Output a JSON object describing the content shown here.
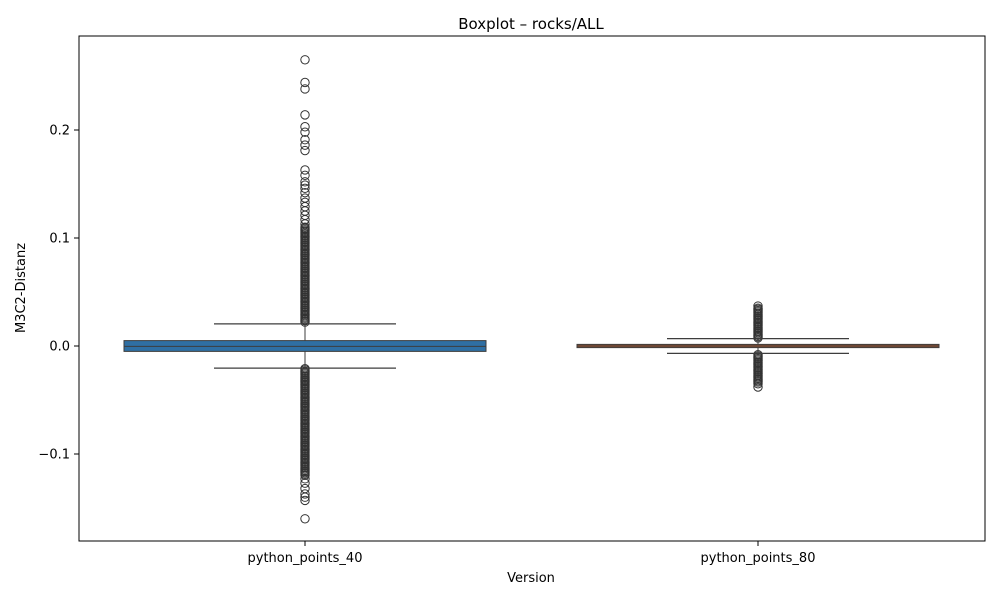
{
  "chart_data": {
    "type": "box",
    "title": "Boxplot – rocks/ALL",
    "xlabel": "Version",
    "ylabel": "M3C2-Distanz",
    "ylim": [
      -0.18,
      0.285
    ],
    "yticks": [
      -0.1,
      0.0,
      0.1,
      0.2
    ],
    "ytick_labels": [
      "−0.1",
      "0.0",
      "0.1",
      "0.2"
    ],
    "grid": false,
    "categories": [
      "python_points_40",
      "python_points_80"
    ],
    "boxes": [
      {
        "category": "python_points_40",
        "color": "#2f6fa3",
        "q1": -0.005,
        "median": -0.0003,
        "q3": 0.005,
        "whisker_low": -0.0205,
        "whisker_high": 0.0205,
        "outliers_high": [
          0.265,
          0.244,
          0.238,
          0.214,
          0.203,
          0.198,
          0.191,
          0.186,
          0.181,
          0.163,
          0.158,
          0.152,
          0.149,
          0.146,
          0.142,
          0.137,
          0.133,
          0.129,
          0.125,
          0.121,
          0.117,
          0.113
        ],
        "outlier_band_high": [
          0.021,
          0.11
        ],
        "outliers_low": [
          -0.123,
          -0.127,
          -0.132,
          -0.137,
          -0.14,
          -0.143,
          -0.16
        ],
        "outlier_band_low": [
          -0.12,
          -0.021
        ]
      },
      {
        "category": "python_points_80",
        "color": "#a0522d",
        "q1": -0.0015,
        "median": 0.0,
        "q3": 0.0015,
        "whisker_low": -0.0068,
        "whisker_high": 0.0068,
        "outliers_high": [
          0.037,
          0.035
        ],
        "outlier_band_high": [
          0.0075,
          0.034
        ],
        "outliers_low": [
          -0.035,
          -0.038
        ],
        "outlier_band_low": [
          -0.034,
          -0.008
        ]
      }
    ]
  }
}
